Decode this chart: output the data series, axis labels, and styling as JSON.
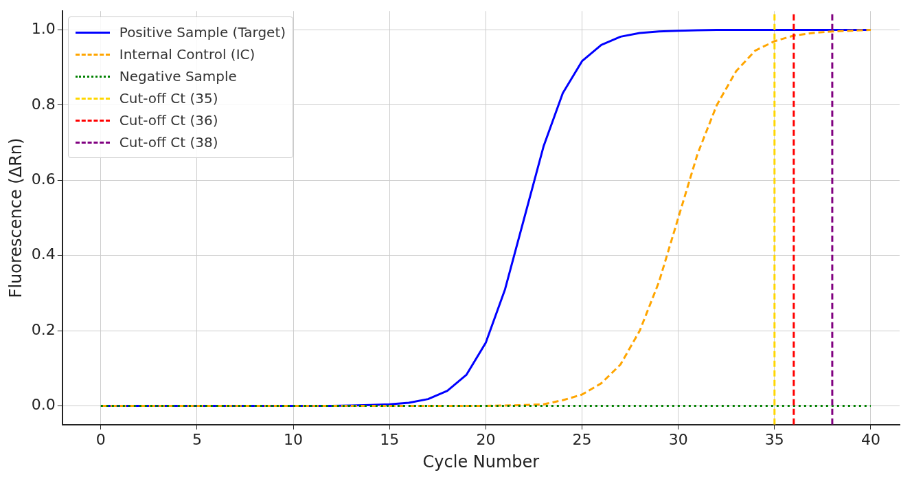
{
  "chart_data": {
    "type": "line",
    "xlabel": "Cycle Number",
    "ylabel": "Fluorescence (ΔRn)",
    "xlim": [
      -2,
      41.5
    ],
    "ylim": [
      -0.05,
      1.05
    ],
    "xticks": [
      0,
      5,
      10,
      15,
      20,
      25,
      30,
      35,
      40
    ],
    "yticks": [
      {
        "value": 0,
        "label": "0.0"
      },
      0.2,
      0.4,
      0.6,
      0.8,
      {
        "value": 1,
        "label": "1.0"
      }
    ],
    "x": [
      0,
      1,
      2,
      3,
      4,
      5,
      6,
      7,
      8,
      9,
      10,
      11,
      12,
      13,
      14,
      15,
      16,
      17,
      18,
      19,
      20,
      21,
      22,
      23,
      24,
      25,
      26,
      27,
      28,
      29,
      30,
      31,
      32,
      33,
      34,
      35,
      36,
      37,
      38,
      39,
      40
    ],
    "series": [
      {
        "name": "Positive Sample (Target)",
        "color": "#0000ff",
        "line_style": "solid",
        "values": [
          0,
          0,
          0,
          0,
          0,
          0,
          0,
          0,
          0,
          0,
          0,
          0,
          0,
          0.001,
          0.002,
          0.004,
          0.008,
          0.018,
          0.04,
          0.083,
          0.168,
          0.31,
          0.5,
          0.69,
          0.832,
          0.917,
          0.96,
          0.982,
          0.992,
          0.996,
          0.998,
          0.999,
          1,
          1,
          1,
          1,
          1,
          1,
          1,
          1,
          1
        ]
      },
      {
        "name": "Internal Control (IC)",
        "color": "#ffa500",
        "line_style": "dashed",
        "values": [
          0,
          0,
          0,
          0,
          0,
          0,
          0,
          0,
          0,
          0,
          0,
          0,
          0,
          0,
          0,
          0,
          0,
          0,
          0,
          0,
          0,
          0.001,
          0.002,
          0.004,
          0.015,
          0.03,
          0.06,
          0.11,
          0.2,
          0.33,
          0.5,
          0.67,
          0.8,
          0.89,
          0.945,
          0.97,
          0.985,
          0.992,
          0.996,
          0.998,
          1
        ]
      },
      {
        "name": "Negative Sample",
        "color": "#008000",
        "line_style": "dotted",
        "values": [
          0,
          0,
          0,
          0,
          0,
          0,
          0,
          0,
          0,
          0,
          0,
          0,
          0,
          0,
          0,
          0,
          0,
          0,
          0,
          0,
          0,
          0,
          0,
          0,
          0,
          0,
          0,
          0,
          0,
          0,
          0,
          0,
          0,
          0,
          0,
          0,
          0,
          0,
          0,
          0,
          0
        ]
      },
      {
        "name": "Cut-off Ct (35)",
        "color": "#ffd700",
        "line_style": "dashed",
        "x": [
          35,
          35
        ],
        "values": [
          -0.05,
          1.05
        ]
      },
      {
        "name": "Cut-off Ct (36)",
        "color": "#ff0000",
        "line_style": "dashed",
        "x": [
          36,
          36
        ],
        "values": [
          -0.05,
          1.05
        ]
      },
      {
        "name": "Cut-off Ct (38)",
        "color": "#800080",
        "line_style": "dashed",
        "x": [
          38,
          38
        ],
        "values": [
          -0.05,
          1.05
        ]
      }
    ],
    "grid": true,
    "legend": "top left",
    "marker": "none"
  }
}
